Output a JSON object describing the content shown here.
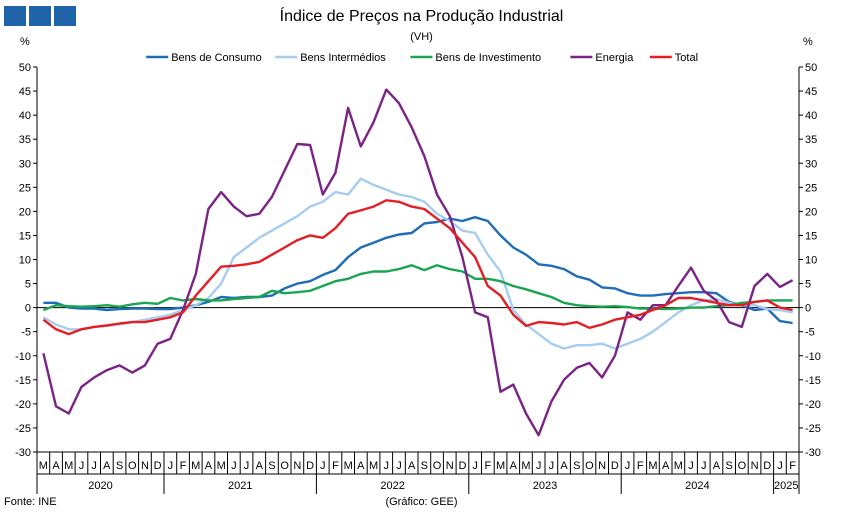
{
  "logo": {
    "icon": "ine-logo-blocks-icon",
    "color": "#1f63a9"
  },
  "header": {
    "title": "Índice de Preços na Produção Industrial",
    "subtitle": "(VH)",
    "unit_left": "%",
    "unit_right": "%"
  },
  "footer": {
    "source": "Fonte: INE",
    "credit": "(Gráfico: GEE)"
  },
  "chart_data": {
    "type": "line",
    "ylim": [
      -30,
      50
    ],
    "yticks": [
      -30,
      -25,
      -20,
      -15,
      -10,
      -5,
      0,
      5,
      10,
      15,
      20,
      25,
      30,
      35,
      40,
      45,
      50
    ],
    "grid": false,
    "legend_position": "top-center",
    "month_labels": [
      "M",
      "A",
      "M",
      "J",
      "J",
      "A",
      "S",
      "O",
      "N",
      "D",
      "J",
      "F",
      "M",
      "A",
      "M",
      "J",
      "J",
      "A",
      "S",
      "O",
      "N",
      "D",
      "J",
      "F",
      "M",
      "A",
      "M",
      "J",
      "J",
      "A",
      "S",
      "O",
      "N",
      "D",
      "J",
      "F",
      "M",
      "A",
      "M",
      "J",
      "J",
      "A",
      "S",
      "O",
      "N",
      "D",
      "J",
      "F",
      "M",
      "A",
      "M",
      "J",
      "J",
      "A",
      "S",
      "O",
      "N",
      "D",
      "J",
      "F"
    ],
    "years": [
      {
        "label": "2020",
        "start": 0,
        "end": 9
      },
      {
        "label": "2021",
        "start": 10,
        "end": 21
      },
      {
        "label": "2022",
        "start": 22,
        "end": 33
      },
      {
        "label": "2023",
        "start": 34,
        "end": 45
      },
      {
        "label": "2024",
        "start": 46,
        "end": 57
      },
      {
        "label": "2025",
        "start": 58,
        "end": 59
      }
    ],
    "series": [
      {
        "name": "Bens de Consumo",
        "color": "#1f6db5",
        "values": [
          1.0,
          1.0,
          0.0,
          -0.2,
          -0.2,
          -0.5,
          -0.3,
          -0.2,
          -0.2,
          -0.3,
          -0.3,
          0.0,
          0.5,
          1.2,
          2.2,
          2.0,
          2.2,
          2.2,
          2.5,
          4.0,
          5.0,
          5.5,
          6.8,
          7.8,
          10.5,
          12.5,
          13.5,
          14.5,
          15.2,
          15.5,
          17.5,
          17.8,
          18.5,
          18.0,
          18.8,
          18.0,
          15.0,
          12.5,
          11.0,
          9.0,
          8.7,
          8.0,
          6.5,
          5.8,
          4.2,
          4.0,
          3.0,
          2.5,
          2.5,
          2.8,
          3.0,
          3.2,
          3.2,
          3.0,
          1.2,
          0.5,
          -0.5,
          -0.2,
          -2.8,
          -3.2
        ]
      },
      {
        "name": "Bens Intermédios",
        "color": "#a6cdee",
        "values": [
          -2.0,
          -3.5,
          -4.5,
          -4.5,
          -4.0,
          -3.8,
          -3.5,
          -3.0,
          -2.5,
          -2.0,
          -1.5,
          -0.5,
          0.5,
          2.0,
          5.0,
          10.5,
          12.5,
          14.5,
          16.0,
          17.5,
          19.0,
          21.0,
          22.0,
          24.0,
          23.5,
          26.8,
          25.5,
          24.5,
          23.5,
          23.0,
          22.0,
          19.5,
          18.0,
          16.0,
          15.5,
          11.0,
          7.5,
          -0.5,
          -3.5,
          -5.5,
          -7.5,
          -8.5,
          -7.8,
          -7.8,
          -7.5,
          -8.5,
          -7.5,
          -6.5,
          -5.0,
          -3.0,
          -1.0,
          0.5,
          1.5,
          1.8,
          1.0,
          0.5,
          0.5,
          -0.3,
          -0.5,
          -1.0
        ]
      },
      {
        "name": "Bens de Investimento",
        "color": "#1aa64f",
        "values": [
          -0.5,
          0.5,
          0.3,
          0.2,
          0.3,
          0.5,
          0.2,
          0.7,
          1.0,
          0.8,
          2.0,
          1.5,
          1.8,
          1.5,
          1.5,
          1.8,
          2.0,
          2.2,
          3.5,
          3.0,
          3.2,
          3.5,
          4.5,
          5.5,
          6.0,
          7.0,
          7.5,
          7.5,
          8.0,
          8.8,
          7.8,
          8.8,
          8.0,
          7.5,
          6.0,
          6.0,
          5.5,
          4.5,
          3.8,
          3.0,
          2.2,
          1.0,
          0.5,
          0.3,
          0.2,
          0.3,
          0.1,
          -0.2,
          -0.2,
          -0.3,
          -0.2,
          0.0,
          0.0,
          0.3,
          0.5,
          1.0,
          1.2,
          1.5,
          1.5,
          1.5
        ]
      },
      {
        "name": "Energia",
        "color": "#7b2385",
        "values": [
          -9.5,
          -20.5,
          -22.0,
          -16.5,
          -14.5,
          -13.0,
          -12.0,
          -13.5,
          -12.0,
          -7.5,
          -6.5,
          -0.5,
          7.0,
          20.5,
          24.0,
          21.0,
          19.0,
          19.5,
          23.0,
          28.5,
          34.0,
          33.8,
          23.5,
          28.0,
          41.5,
          33.5,
          38.5,
          45.3,
          42.5,
          37.5,
          31.5,
          23.5,
          19.0,
          10.5,
          -1.0,
          -2.0,
          -17.5,
          -16.0,
          -22.0,
          -26.5,
          -19.5,
          -15.0,
          -12.5,
          -11.5,
          -14.5,
          -10.0,
          -1.0,
          -2.5,
          0.5,
          0.5,
          4.5,
          8.3,
          3.5,
          1.5,
          -3.0,
          -4.0,
          4.5,
          7.0,
          4.3,
          5.7
        ]
      },
      {
        "name": "Total",
        "color": "#e31e24",
        "values": [
          -2.5,
          -4.5,
          -5.5,
          -4.5,
          -4.0,
          -3.7,
          -3.3,
          -3.0,
          -3.0,
          -2.5,
          -2.0,
          -1.0,
          2.5,
          5.5,
          8.5,
          8.7,
          9.0,
          9.5,
          11.0,
          12.5,
          14.0,
          15.0,
          14.5,
          16.5,
          19.5,
          20.2,
          21.0,
          22.3,
          22.0,
          21.0,
          20.5,
          18.5,
          16.5,
          13.5,
          10.5,
          4.5,
          2.5,
          -1.5,
          -3.8,
          -3.0,
          -3.2,
          -3.5,
          -3.0,
          -4.2,
          -3.5,
          -2.5,
          -2.0,
          -1.5,
          -0.5,
          0.5,
          2.0,
          2.0,
          1.5,
          1.0,
          0.5,
          0.5,
          1.2,
          1.5,
          0.0,
          -0.5
        ]
      }
    ]
  }
}
